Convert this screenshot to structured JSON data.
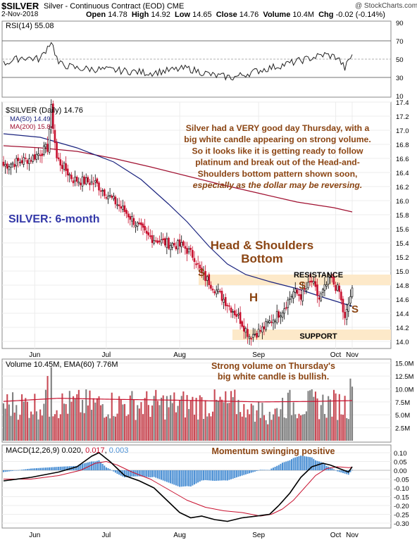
{
  "header": {
    "symbol": "$SILVER",
    "desc": "Silver - Continuous Contract (EOD)",
    "exchange": "CME",
    "date": "2-Nov-2018",
    "open_label": "Open",
    "open": "14.78",
    "high_label": "High",
    "high": "14.92",
    "low_label": "Low",
    "low": "14.65",
    "close_label": "Close",
    "close": "14.76",
    "volume_label": "Volume",
    "volume": "10.4M",
    "chg_label": "Chg",
    "chg": "-0.02 (-0.14%)",
    "watermark": "@ StockCharts.com"
  },
  "colors": {
    "up": "#000000",
    "down": "#c8102e",
    "ma50": "#1a237e",
    "ma200": "#a01030",
    "band": "#fde9c9",
    "annotation": "#8b4513",
    "title_blue": "#3338a8",
    "vol_up": "#808080",
    "vol_down": "#c84a55",
    "macd_hist": "#4a8fd4"
  },
  "chart_data": [
    {
      "type": "line",
      "panel": "rsi",
      "legend": "RSI(14) 55.08",
      "yticks": [
        "90",
        "70",
        "50",
        "30",
        "10"
      ],
      "ylim": [
        10,
        90
      ],
      "reference_lines": [
        70,
        50,
        30
      ],
      "last_value": 55.08
    },
    {
      "type": "candlestick",
      "panel": "price",
      "legend_symbol": "$SILVER (Daily) 14.76",
      "legend_ma50": "MA(50) 14.49",
      "legend_ma200": "MA(200) 15.84",
      "title": "SILVER: 6-month",
      "ylim": [
        13.9,
        17.4
      ],
      "yticks": [
        "17.4",
        "17.2",
        "17.0",
        "16.8",
        "16.6",
        "16.4",
        "16.2",
        "16.0",
        "15.8",
        "15.6",
        "15.4",
        "15.2",
        "15.0",
        "14.8",
        "14.6",
        "14.4",
        "14.2",
        "14.0"
      ],
      "xticks": [
        "Jun",
        "Jul",
        "Aug",
        "Sep",
        "Oct",
        "Nov"
      ],
      "commentary": [
        "Silver had a VERY good day Thursday, with a",
        "big white candle appearing on strong volume.",
        "So it looks like it is getting ready to follow",
        "platinum and break out of the Head-and-",
        "Shoulders bottom pattern shown soon,",
        "especially as the dollar may be reversing."
      ],
      "pattern_title": [
        "Head & Shoulders",
        "Bottom"
      ],
      "labels": {
        "resistance": "RESISTANCE",
        "support": "SUPPORT",
        "s": "S",
        "h": "H"
      },
      "resistance_zone": [
        14.8,
        14.95
      ],
      "support_zone": [
        14.02,
        14.17
      ],
      "key_levels": {
        "start": 16.5,
        "june_peak": 17.3,
        "late_june": 16.5,
        "mid_july": 15.8,
        "early_aug": 15.3,
        "left_shoulder": 14.85,
        "head_low": 14.08,
        "right_shoulder_peak": 14.9,
        "last_close": 14.76
      },
      "ma50_path": [
        [
          0,
          16.95
        ],
        [
          20,
          16.9
        ],
        [
          40,
          16.75
        ],
        [
          60,
          16.55
        ],
        [
          75,
          16.3
        ],
        [
          90,
          15.95
        ],
        [
          100,
          15.7
        ],
        [
          112,
          15.35
        ],
        [
          122,
          15.1
        ],
        [
          132,
          14.95
        ],
        [
          145,
          14.85
        ],
        [
          160,
          14.75
        ],
        [
          175,
          14.62
        ],
        [
          190,
          14.5
        ]
      ],
      "ma200_path": [
        [
          0,
          16.78
        ],
        [
          20,
          16.75
        ],
        [
          40,
          16.7
        ],
        [
          60,
          16.6
        ],
        [
          80,
          16.48
        ],
        [
          100,
          16.35
        ],
        [
          120,
          16.22
        ],
        [
          140,
          16.1
        ],
        [
          160,
          15.98
        ],
        [
          180,
          15.9
        ],
        [
          190,
          15.84
        ]
      ]
    },
    {
      "type": "bar",
      "panel": "volume",
      "legend": "Volume 10.45M, EMA(60) 7.76M",
      "yticks": [
        "15.0M",
        "12.5M",
        "10.0M",
        "7.5M",
        "5.0M",
        "2.5M"
      ],
      "ylim": [
        0,
        15.5
      ],
      "ema60": 7.76,
      "annotation": [
        "Strong volume on Thursday's",
        "big white candle is bullish."
      ]
    },
    {
      "type": "line",
      "panel": "macd",
      "legend_prefix": "MACD(12,26,9)",
      "legend_macd": "0.020",
      "legend_signal": "0.017",
      "legend_hist": "0.003",
      "annotation": "Momentum swinging positive",
      "ylim": [
        -0.32,
        0.12
      ],
      "yticks": [
        "0.10",
        "0.05",
        "0.00",
        "-0.05",
        "-0.10",
        "-0.15",
        "-0.20",
        "-0.25",
        "-0.30"
      ],
      "macd_path": [
        [
          0,
          -0.06
        ],
        [
          15,
          -0.04
        ],
        [
          30,
          -0.01
        ],
        [
          40,
          0.02
        ],
        [
          48,
          0.08
        ],
        [
          52,
          0.1
        ],
        [
          58,
          0.05
        ],
        [
          66,
          -0.03
        ],
        [
          74,
          -0.06
        ],
        [
          82,
          -0.1
        ],
        [
          90,
          -0.18
        ],
        [
          96,
          -0.24
        ],
        [
          102,
          -0.27
        ],
        [
          108,
          -0.26
        ],
        [
          115,
          -0.28
        ],
        [
          122,
          -0.29
        ],
        [
          130,
          -0.27
        ],
        [
          138,
          -0.26
        ],
        [
          145,
          -0.25
        ],
        [
          150,
          -0.2
        ],
        [
          156,
          -0.13
        ],
        [
          162,
          -0.04
        ],
        [
          168,
          0.02
        ],
        [
          174,
          0.04
        ],
        [
          178,
          0.03
        ],
        [
          183,
          0.01
        ],
        [
          188,
          -0.01
        ],
        [
          190,
          0.02
        ]
      ],
      "signal_path": [
        [
          0,
          -0.05
        ],
        [
          15,
          -0.05
        ],
        [
          30,
          -0.03
        ],
        [
          42,
          0.0
        ],
        [
          50,
          0.04
        ],
        [
          56,
          0.05
        ],
        [
          62,
          0.03
        ],
        [
          70,
          -0.01
        ],
        [
          80,
          -0.05
        ],
        [
          90,
          -0.11
        ],
        [
          100,
          -0.17
        ],
        [
          110,
          -0.21
        ],
        [
          120,
          -0.23
        ],
        [
          130,
          -0.24
        ],
        [
          140,
          -0.26
        ],
        [
          146,
          -0.25
        ],
        [
          152,
          -0.22
        ],
        [
          158,
          -0.17
        ],
        [
          164,
          -0.1
        ],
        [
          170,
          -0.03
        ],
        [
          176,
          0.01
        ],
        [
          182,
          0.02
        ],
        [
          188,
          0.015
        ],
        [
          190,
          0.017
        ]
      ]
    }
  ]
}
